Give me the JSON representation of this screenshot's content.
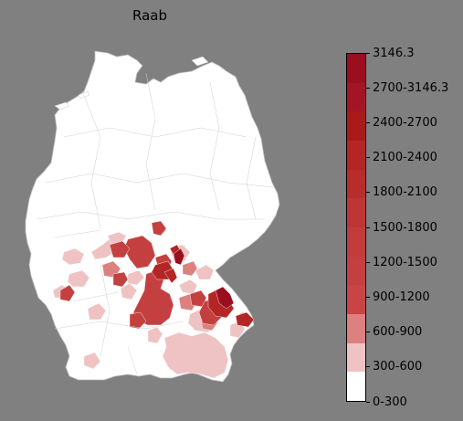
{
  "title": "Raab",
  "legend": {
    "colors": [
      "#ffffff",
      "#efc3c3",
      "#dc8080",
      "#c94545",
      "#c44040",
      "#c23c3c",
      "#be3535",
      "#b92c2c",
      "#b42525",
      "#aa1a1a",
      "#a31424",
      "#9a0e1e"
    ],
    "ticks": [
      "0-300",
      "300-600",
      "600-900",
      "900-1200",
      "1200-1500",
      "1500-1800",
      "1800-2100",
      "2100-2400",
      "2400-2700",
      "2700-3146.3",
      "3146.3"
    ]
  },
  "map": {
    "region_colors": {
      "none": "#ffffff",
      "low": "#efc3c3",
      "mid": "#dc8080",
      "high": "#c44040",
      "very_high": "#b42525",
      "max": "#9a0e1e"
    }
  }
}
